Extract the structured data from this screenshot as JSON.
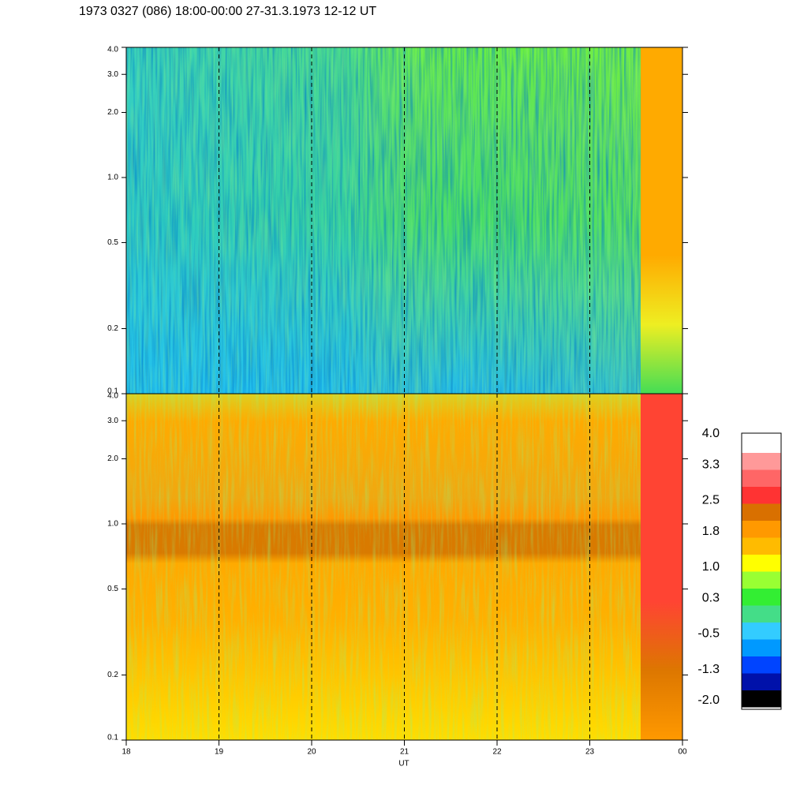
{
  "chart_data": [
    {
      "type": "spectrogram",
      "title": "1973 0327 (086) 18:00-00:00 27-31.3.1973  12-12 UT",
      "ylim": [
        0.1,
        4.0
      ],
      "yscale": "log",
      "yticks": [
        0.1,
        0.2,
        0.5,
        {
          "value": 1.0,
          "label": "1.0"
        },
        {
          "value": 2.0,
          "label": "2.0"
        },
        {
          "value": 3.0,
          "label": "3.0"
        },
        {
          "value": 4.0,
          "label": "4.0"
        }
      ]
    },
    {
      "type": "spectrogram",
      "xlabel": "UT",
      "xlim": [
        18,
        24
      ],
      "xticks": [
        18,
        19,
        20,
        21,
        22,
        23,
        {
          "value": 24,
          "label": "00"
        }
      ],
      "ylim": [
        0.1,
        4.0
      ],
      "yscale": "log",
      "yticks": [
        0.1,
        0.2,
        0.5,
        {
          "value": 1.0,
          "label": "1.0"
        },
        {
          "value": 2.0,
          "label": "2.0"
        },
        {
          "value": 3.0,
          "label": "3.0"
        },
        {
          "value": 4.0,
          "label": "4.0"
        }
      ],
      "colorbar": {
        "lim": [
          -2.0,
          4.0
        ],
        "colors": [
          "#000000",
          "#0011aa",
          "#0044ff",
          "#0099ff",
          "#33ccff",
          "#44dd88",
          "#33ee33",
          "#99ff33",
          "#ffff00",
          "#ffbb00",
          "#ff9900",
          "#d97000",
          "#ff3333",
          "#ff6666",
          "#ff9999",
          "#ffffff"
        ],
        "ticks": [
          {
            "value": -2.0,
            "label": "-2.0"
          },
          -1.3,
          -0.5,
          0.3,
          {
            "value": 1.0,
            "label": "1.0"
          },
          1.8,
          2.5,
          3.3,
          {
            "value": 4.0,
            "label": "4.0"
          }
        ]
      }
    }
  ]
}
